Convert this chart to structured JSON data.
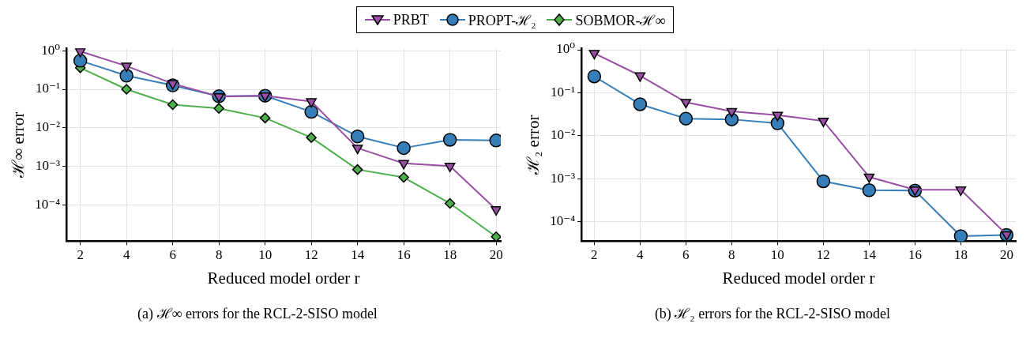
{
  "chart_data": [
    {
      "type": "line",
      "xlabel": "Reduced model order r",
      "ylabel": "ℋ∞ error",
      "log": "y",
      "grid": true,
      "legend": "top",
      "x": [
        2,
        4,
        6,
        8,
        10,
        12,
        14,
        16,
        18,
        20
      ],
      "xlim": [
        1.4,
        20.2
      ],
      "xticks": [
        2,
        4,
        6,
        8,
        10,
        12,
        14,
        16,
        18,
        20
      ],
      "ylim": [
        1.15e-05,
        1.15
      ],
      "yticks": [
        {
          "value": 1,
          "label": "10⁰"
        },
        {
          "value": 0.1,
          "label": "10⁻¹"
        },
        {
          "value": 0.01,
          "label": "10⁻²"
        },
        {
          "value": 0.001,
          "label": "10⁻³"
        },
        {
          "value": 0.0001,
          "label": "10⁻⁴"
        }
      ],
      "annotations": [
        "(a) ℋ∞ errors for the RCL-2-SISO model"
      ],
      "series": [
        {
          "name": "PRBT",
          "color": "#984ea3",
          "marker": "triangle",
          "values": [
            0.96,
            0.4,
            0.14,
            0.065,
            0.068,
            0.048,
            0.003,
            0.0012,
            0.00102,
            7.6e-05
          ]
        },
        {
          "name": "PROPT-ℋ₂",
          "color": "#377eb8",
          "marker": "circle",
          "values": [
            0.55,
            0.225,
            0.126,
            0.066,
            0.068,
            0.026,
            0.006,
            0.003,
            0.0049,
            0.0047
          ]
        },
        {
          "name": "SOBMOR-ℋ∞",
          "color": "#4daf4a",
          "marker": "diamond",
          "values": [
            0.36,
            0.1,
            0.04,
            0.032,
            0.018,
            0.0056,
            0.00083,
            0.00052,
            0.00011,
            1.5e-05
          ]
        }
      ]
    },
    {
      "type": "line",
      "xlabel": "Reduced model order r",
      "ylabel": "ℋ₂ error",
      "log": "y",
      "grid": true,
      "legend": "top",
      "x": [
        2,
        4,
        6,
        8,
        10,
        12,
        14,
        16,
        18,
        20
      ],
      "xlim": [
        1.44,
        20.4
      ],
      "xticks": [
        2,
        4,
        6,
        8,
        10,
        12,
        14,
        16,
        18,
        20
      ],
      "ylim": [
        3.5e-05,
        1.08
      ],
      "yticks": [
        {
          "value": 1,
          "label": "10⁰"
        },
        {
          "value": 0.1,
          "label": "10⁻¹"
        },
        {
          "value": 0.01,
          "label": "10⁻²"
        },
        {
          "value": 0.001,
          "label": "10⁻³"
        },
        {
          "value": 0.0001,
          "label": "10⁻⁴"
        }
      ],
      "annotations": [
        "(b) ℋ₂ errors for the RCL-2-SISO model"
      ],
      "series": [
        {
          "name": "PRBT",
          "color": "#984ea3",
          "marker": "triangle",
          "values": [
            0.83,
            0.25,
            0.06,
            0.037,
            0.03,
            0.022,
            0.0011,
            0.00055,
            0.00055,
            5e-05
          ]
        },
        {
          "name": "PROPT-ℋ₂",
          "color": "#377eb8",
          "marker": "circle",
          "values": [
            0.24,
            0.054,
            0.025,
            0.024,
            0.0195,
            0.00087,
            0.00054,
            0.00053,
            4.6e-05,
            4.9e-05
          ]
        }
      ]
    }
  ]
}
